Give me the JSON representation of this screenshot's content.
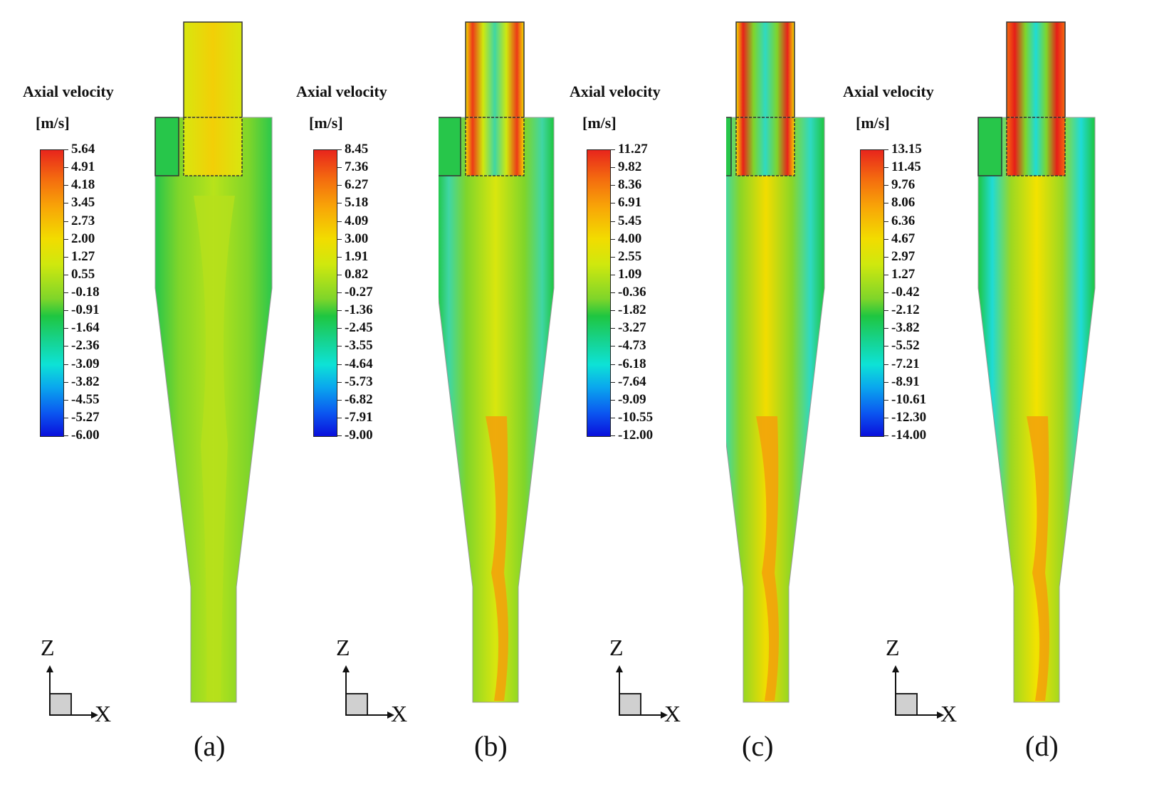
{
  "panels": [
    {
      "id": "a",
      "legend_title": "Axial velocity",
      "unit": "[m/s]",
      "ticks": [
        "5.64",
        "4.91",
        "4.18",
        "3.45",
        "2.73",
        "2.00",
        "1.27",
        "0.55",
        "-0.18",
        "-0.91",
        "-1.64",
        "-2.36",
        "-3.09",
        "-3.82",
        "-4.55",
        "-5.27",
        "-6.00"
      ],
      "axis_z": "Z",
      "axis_x": "X",
      "caption": "(a)"
    },
    {
      "id": "b",
      "legend_title": "Axial velocity",
      "unit": "[m/s]",
      "ticks": [
        "8.45",
        "7.36",
        "6.27",
        "5.18",
        "4.09",
        "3.00",
        "1.91",
        "0.82",
        "-0.27",
        "-1.36",
        "-2.45",
        "-3.55",
        "-4.64",
        "-5.73",
        "-6.82",
        "-7.91",
        "-9.00"
      ],
      "axis_z": "Z",
      "axis_x": "X",
      "caption": "(b)"
    },
    {
      "id": "c",
      "legend_title": "Axial velocity",
      "unit": "[m/s]",
      "ticks": [
        "11.27",
        "9.82",
        "8.36",
        "6.91",
        "5.45",
        "4.00",
        "2.55",
        "1.09",
        "-0.36",
        "-1.82",
        "-3.27",
        "-4.73",
        "-6.18",
        "-7.64",
        "-9.09",
        "-10.55",
        "-12.00"
      ],
      "axis_z": "Z",
      "axis_x": "X",
      "caption": "(c)"
    },
    {
      "id": "d",
      "legend_title": "Axial velocity",
      "unit": "[m/s]",
      "ticks": [
        "13.15",
        "11.45",
        "9.76",
        "8.06",
        "6.36",
        "4.67",
        "2.97",
        "1.27",
        "-0.42",
        "-2.12",
        "-3.82",
        "-5.52",
        "-7.21",
        "-8.91",
        "-10.61",
        "-12.30",
        "-14.00"
      ],
      "axis_z": "Z",
      "axis_x": "X",
      "caption": "(d)"
    }
  ],
  "colors": {
    "wall": "#1fc43c",
    "near_wall": "#3fd9a0",
    "core": "#cde81a",
    "yellow": "#f3e200",
    "orange": "#f89a0a",
    "red": "#ec2a17"
  }
}
